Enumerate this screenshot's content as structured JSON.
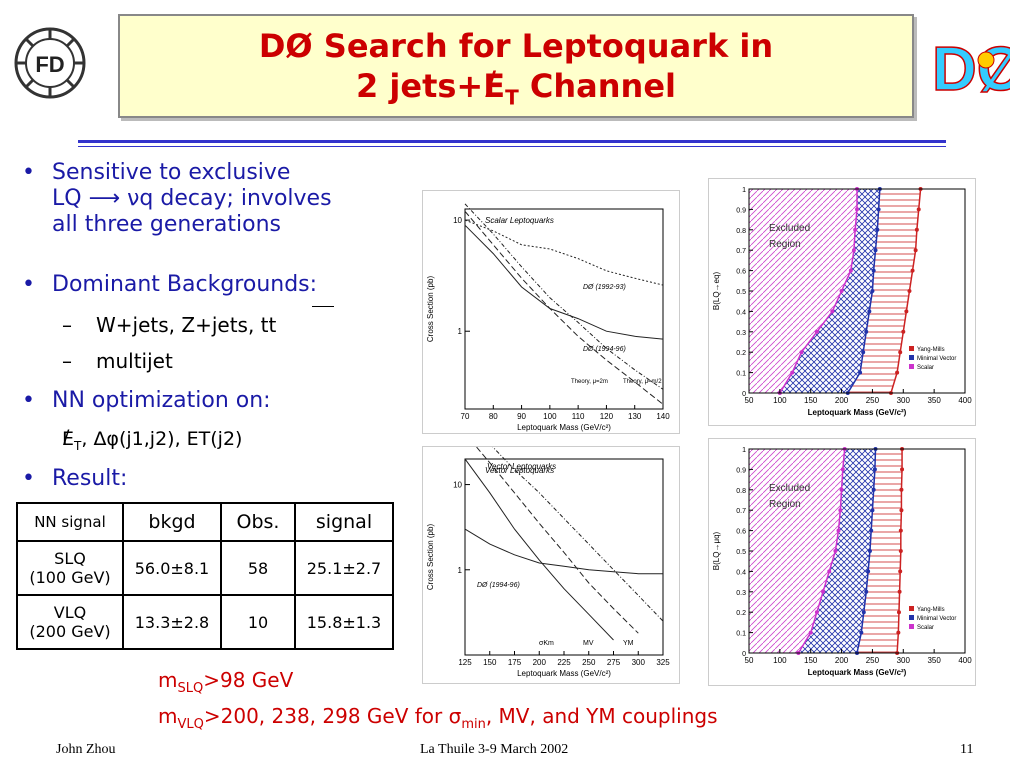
{
  "title": {
    "line1": "DØ Search for Leptoquark in",
    "line2_pre": "2 jets+",
    "line2_et": "E",
    "line2_t": "T",
    "line2_post": " Channel"
  },
  "bullets": {
    "b1_l1": "Sensitive to exclusive",
    "b1_l2_pre": "LQ",
    "b1_l2_post": "νq decay; involves",
    "b1_l3": "all three generations",
    "b2": "Dominant Backgrounds:",
    "b2_sub1": "W+jets, Z+jets, tt",
    "b2_sub2": "multijet",
    "b3": "NN optimization on:",
    "b3_line": "(j1,j2), ET(j2)",
    "b4": "Result:"
  },
  "table": {
    "headers": [
      "NN signal",
      "bkgd",
      "Obs.",
      "signal"
    ],
    "rows": [
      {
        "name1": "SLQ",
        "name2": "(100 GeV)",
        "bkgd": "56.0±8.1",
        "obs": "58",
        "signal": "25.1±2.7"
      },
      {
        "name1": "VLQ",
        "name2": "(200 GeV)",
        "bkgd": "13.3±2.8",
        "obs": "10",
        "signal": "15.8±1.3"
      }
    ]
  },
  "results": {
    "line1_pre": "m",
    "line1_sub": "SLQ",
    "line1_post": ">98 GeV",
    "line2_pre": "m",
    "line2_sub": "VLQ",
    "line2_post": ">200, 238, 298 GeV for ",
    "line2_sigma": "σ",
    "line2_min": "min",
    "line2_end": ", MV, and YM couplings"
  },
  "footer": {
    "left": "John Zhou",
    "center": "La Thuile 3-9 March 2002",
    "right": "11"
  },
  "colors": {
    "title": "#cc0000",
    "bullet_text": "#1a1aa6",
    "separator": "#3333cc",
    "title_bg": "#ffffcc"
  },
  "chart_data": [
    {
      "type": "line",
      "title": "Scalar Leptoquarks",
      "xlabel": "Leptoquark Mass (GeV/c²)",
      "ylabel": "Cross Section (pb)",
      "xlim": [
        70,
        140
      ],
      "xticks": [
        "70",
        "80",
        "90",
        "100",
        "110",
        "120",
        "130",
        "140"
      ],
      "yticks": [
        "10",
        "1"
      ],
      "log_y": true,
      "series": [
        {
          "name": "DØ (1992-93)",
          "x": [
            70,
            80,
            90,
            100,
            110,
            120,
            130,
            140
          ],
          "y": [
            10,
            8,
            6,
            5.5,
            4.5,
            3.5,
            3,
            2.6
          ]
        },
        {
          "name": "DØ (1994-96)",
          "x": [
            70,
            80,
            90,
            100,
            110,
            120,
            130,
            140
          ],
          "y": [
            9,
            5,
            2.5,
            1.6,
            1.3,
            1.0,
            0.9,
            0.85
          ]
        },
        {
          "name": "Theory, μ=2m",
          "x": [
            70,
            80,
            90,
            100,
            110,
            120,
            130,
            140
          ],
          "y": [
            12,
            6,
            3,
            1.6,
            0.9,
            0.55,
            0.35,
            0.22
          ]
        },
        {
          "name": "Theory, μ=m/2",
          "x": [
            70,
            80,
            90,
            100,
            110,
            120,
            130,
            140
          ],
          "y": [
            14,
            7.5,
            3.8,
            2,
            1.2,
            0.7,
            0.45,
            0.3
          ]
        }
      ]
    },
    {
      "type": "area",
      "title": "",
      "xlabel": "Leptoquark Mass (GeV/c²)",
      "ylabel": "B(LQ→eq)",
      "xlim": [
        50,
        400
      ],
      "ylim": [
        0,
        1
      ],
      "xticks": [
        "50",
        "100",
        "150",
        "200",
        "250",
        "300",
        "350",
        "400"
      ],
      "yticks": [
        "0",
        "0.1",
        "0.2",
        "0.3",
        "0.4",
        "0.5",
        "0.6",
        "0.7",
        "0.8",
        "0.9",
        "1"
      ],
      "annotation": "Excluded Region",
      "legend": [
        "Yang-Mills",
        "Minimal Vector",
        "Scalar"
      ],
      "series": [
        {
          "name": "Scalar",
          "y": [
            0,
            0.1,
            0.2,
            0.3,
            0.4,
            0.5,
            0.6,
            0.7,
            0.8,
            0.9,
            1
          ],
          "x": [
            100,
            120,
            135,
            160,
            185,
            200,
            215,
            220,
            222,
            225,
            225
          ]
        },
        {
          "name": "Minimal Vector",
          "y": [
            0,
            0.1,
            0.2,
            0.3,
            0.4,
            0.5,
            0.6,
            0.7,
            0.8,
            0.9,
            1
          ],
          "x": [
            210,
            230,
            235,
            240,
            245,
            250,
            252,
            255,
            258,
            260,
            262
          ]
        },
        {
          "name": "Yang-Mills",
          "y": [
            0,
            0.1,
            0.2,
            0.3,
            0.4,
            0.5,
            0.6,
            0.7,
            0.8,
            0.9,
            1
          ],
          "x": [
            280,
            290,
            295,
            300,
            305,
            310,
            315,
            320,
            322,
            325,
            328
          ]
        }
      ]
    },
    {
      "type": "line",
      "title": "Vector Leptoquarks",
      "xlabel": "Leptoquark Mass (GeV/c²)",
      "ylabel": "Cross Section (pb)",
      "xlim": [
        125,
        325
      ],
      "xticks": [
        "125",
        "150",
        "175",
        "200",
        "225",
        "250",
        "275",
        "300",
        "325"
      ],
      "yticks": [
        "10",
        "1"
      ],
      "log_y": true,
      "annotations": [
        "DØ (1994-96)",
        "σKm",
        "MV",
        "YM"
      ],
      "series": [
        {
          "name": "DØ (1994-96)",
          "x": [
            125,
            150,
            175,
            200,
            225,
            250,
            275,
            300,
            325
          ],
          "y": [
            3,
            2,
            1.5,
            1.2,
            1.1,
            1.0,
            0.95,
            0.9,
            0.9
          ]
        },
        {
          "name": "σKm",
          "x": [
            125,
            150,
            175,
            200,
            225,
            250,
            275
          ],
          "y": [
            20,
            8,
            3,
            1.3,
            0.6,
            0.3,
            0.15
          ]
        },
        {
          "name": "MV",
          "x": [
            125,
            150,
            175,
            200,
            225,
            250,
            275,
            300
          ],
          "y": [
            40,
            18,
            8,
            3.5,
            1.6,
            0.7,
            0.35,
            0.18
          ]
        },
        {
          "name": "YM",
          "x": [
            125,
            150,
            175,
            200,
            225,
            250,
            275,
            300,
            325
          ],
          "y": [
            60,
            30,
            15,
            8,
            4,
            2,
            1,
            0.5,
            0.25
          ]
        }
      ]
    },
    {
      "type": "area",
      "title": "",
      "xlabel": "Leptoquark Mass (GeV/c²)",
      "ylabel": "B(LQ→μq)",
      "xlim": [
        50,
        400
      ],
      "ylim": [
        0,
        1
      ],
      "xticks": [
        "50",
        "100",
        "150",
        "200",
        "250",
        "300",
        "350",
        "400"
      ],
      "yticks": [
        "0",
        "0.1",
        "0.2",
        "0.3",
        "0.4",
        "0.5",
        "0.6",
        "0.7",
        "0.8",
        "0.9",
        "1"
      ],
      "annotation": "Excluded Region",
      "legend": [
        "Yang-Mills",
        "Minimal Vector",
        "Scalar"
      ],
      "series": [
        {
          "name": "Scalar",
          "y": [
            0,
            0.1,
            0.2,
            0.3,
            0.4,
            0.5,
            0.6,
            0.7,
            0.8,
            0.9,
            1
          ],
          "x": [
            130,
            150,
            160,
            170,
            180,
            190,
            195,
            198,
            200,
            202,
            205
          ]
        },
        {
          "name": "Minimal Vector",
          "y": [
            0,
            0.1,
            0.2,
            0.3,
            0.4,
            0.5,
            0.6,
            0.7,
            0.8,
            0.9,
            1
          ],
          "x": [
            225,
            232,
            236,
            240,
            243,
            246,
            248,
            250,
            252,
            254,
            255
          ]
        },
        {
          "name": "Yang-Mills",
          "y": [
            0,
            0.1,
            0.2,
            0.3,
            0.4,
            0.5,
            0.6,
            0.7,
            0.8,
            0.9,
            1
          ],
          "x": [
            290,
            292,
            293,
            294,
            295,
            296,
            296,
            297,
            297,
            298,
            298
          ]
        }
      ]
    }
  ]
}
